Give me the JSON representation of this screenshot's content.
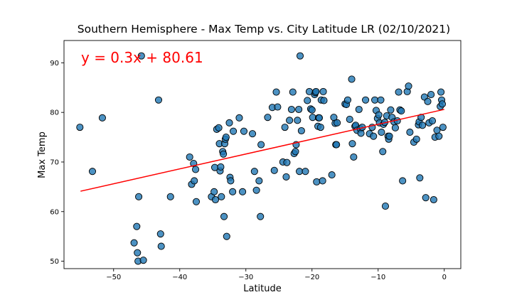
{
  "chart_data": {
    "type": "scatter",
    "title": "Southern Hemisphere - Max Temp vs. City Latitude LR (02/10/2021)",
    "xlabel": "Latitude",
    "ylabel": "Max Temp",
    "xlim": [
      -57.5,
      2.5
    ],
    "ylim": [
      48.5,
      94.5
    ],
    "xticks": [
      -50,
      -40,
      -30,
      -20,
      -10,
      0
    ],
    "yticks": [
      50,
      60,
      70,
      80,
      90
    ],
    "grid": false,
    "legend": "none",
    "point_color": "#1f77b4",
    "point_edge_color": "#000000",
    "regression": {
      "equation": "y = 0.3x + 80.61",
      "slope": 0.3,
      "intercept": 80.61,
      "x_range": [
        -55,
        0
      ],
      "color": "#ff0000"
    },
    "points": [
      [
        -55.1,
        77.0
      ],
      [
        -53.2,
        68.1
      ],
      [
        -51.7,
        78.9
      ],
      [
        -46.2,
        63.0
      ],
      [
        -45.8,
        91.4
      ],
      [
        -43.2,
        82.5
      ],
      [
        -46.9,
        53.7
      ],
      [
        -46.5,
        57.0
      ],
      [
        -46.4,
        51.7
      ],
      [
        -46.3,
        50.0
      ],
      [
        -45.5,
        50.2
      ],
      [
        -42.9,
        55.5
      ],
      [
        -42.8,
        53.0
      ],
      [
        -41.4,
        63.0
      ],
      [
        -38.5,
        71.0
      ],
      [
        -38.2,
        65.5
      ],
      [
        -37.9,
        69.7
      ],
      [
        -37.8,
        66.2
      ],
      [
        -37.6,
        68.5
      ],
      [
        -37.5,
        62.0
      ],
      [
        -35.2,
        63.0
      ],
      [
        -34.8,
        64.0
      ],
      [
        -34.7,
        68.9
      ],
      [
        -34.6,
        62.4
      ],
      [
        -34.4,
        76.6
      ],
      [
        -34.1,
        76.9
      ],
      [
        -34.0,
        73.7
      ],
      [
        -33.9,
        68.2
      ],
      [
        -33.8,
        69.0
      ],
      [
        -33.7,
        63.0
      ],
      [
        -33.5,
        72.1
      ],
      [
        -33.4,
        71.6
      ],
      [
        -33.3,
        59.0
      ],
      [
        -33.2,
        73.7
      ],
      [
        -33.1,
        74.6
      ],
      [
        -33.0,
        75.0
      ],
      [
        -32.9,
        55.0
      ],
      [
        -32.5,
        77.9
      ],
      [
        -32.4,
        66.9
      ],
      [
        -32.3,
        66.2
      ],
      [
        -32.0,
        64.0
      ],
      [
        -31.9,
        76.2
      ],
      [
        -31.0,
        78.9
      ],
      [
        -30.5,
        64.0
      ],
      [
        -30.3,
        76.2
      ],
      [
        -29.0,
        75.7
      ],
      [
        -28.7,
        68.1
      ],
      [
        -28.4,
        64.3
      ],
      [
        -28.0,
        66.2
      ],
      [
        -27.8,
        59.0
      ],
      [
        -27.7,
        73.5
      ],
      [
        -26.7,
        79.0
      ],
      [
        -26.0,
        81.0
      ],
      [
        -25.7,
        68.3
      ],
      [
        -25.4,
        84.1
      ],
      [
        -25.2,
        81.1
      ],
      [
        -24.4,
        70.0
      ],
      [
        -24.1,
        77.0
      ],
      [
        -23.9,
        67.0
      ],
      [
        -23.8,
        69.9
      ],
      [
        -23.4,
        78.4
      ],
      [
        -23.1,
        80.6
      ],
      [
        -22.9,
        84.1
      ],
      [
        -22.7,
        71.7
      ],
      [
        -22.5,
        72.1
      ],
      [
        -22.4,
        73.5
      ],
      [
        -22.2,
        78.4
      ],
      [
        -22.0,
        80.6
      ],
      [
        -21.9,
        68.1
      ],
      [
        -21.8,
        91.4
      ],
      [
        -21.6,
        76.3
      ],
      [
        -21.0,
        68.1
      ],
      [
        -20.7,
        82.4
      ],
      [
        -20.4,
        84.2
      ],
      [
        -20.2,
        80.7
      ],
      [
        -20.0,
        80.5
      ],
      [
        -19.9,
        79.0
      ],
      [
        -19.6,
        83.6
      ],
      [
        -19.5,
        84.0
      ],
      [
        -19.4,
        84.2
      ],
      [
        -19.3,
        66.0
      ],
      [
        -19.1,
        77.2
      ],
      [
        -19.0,
        78.9
      ],
      [
        -18.9,
        78.9
      ],
      [
        -18.7,
        77.0
      ],
      [
        -18.6,
        82.5
      ],
      [
        -18.4,
        66.2
      ],
      [
        -18.3,
        84.2
      ],
      [
        -18.2,
        82.4
      ],
      [
        -17.0,
        67.4
      ],
      [
        -16.7,
        79.0
      ],
      [
        -16.5,
        77.8
      ],
      [
        -16.4,
        73.5
      ],
      [
        -16.3,
        73.5
      ],
      [
        -16.2,
        77.9
      ],
      [
        -15.0,
        81.7
      ],
      [
        -14.8,
        81.6
      ],
      [
        -14.6,
        82.5
      ],
      [
        -14.3,
        78.6
      ],
      [
        -14.0,
        86.7
      ],
      [
        -13.9,
        73.7
      ],
      [
        -13.7,
        71.0
      ],
      [
        -13.5,
        77.2
      ],
      [
        -13.4,
        77.4
      ],
      [
        -13.2,
        76.4
      ],
      [
        -12.9,
        80.6
      ],
      [
        -12.7,
        76.7
      ],
      [
        -12.6,
        75.8
      ],
      [
        -12.4,
        77.0
      ],
      [
        -11.9,
        82.5
      ],
      [
        -11.3,
        75.7
      ],
      [
        -10.9,
        77.0
      ],
      [
        -10.7,
        75.2
      ],
      [
        -10.5,
        82.5
      ],
      [
        -10.3,
        80.4
      ],
      [
        -10.1,
        78.8
      ],
      [
        -9.9,
        79.5
      ],
      [
        -9.8,
        77.9
      ],
      [
        -9.6,
        82.5
      ],
      [
        -9.5,
        76.0
      ],
      [
        -9.3,
        72.1
      ],
      [
        -9.2,
        77.6
      ],
      [
        -9.0,
        78.0
      ],
      [
        -8.9,
        61.1
      ],
      [
        -8.7,
        79.3
      ],
      [
        -8.5,
        75.2
      ],
      [
        -8.4,
        74.6
      ],
      [
        -8.3,
        75.2
      ],
      [
        -8.1,
        80.5
      ],
      [
        -7.9,
        79.0
      ],
      [
        -7.6,
        78.1
      ],
      [
        -7.4,
        76.9
      ],
      [
        -7.1,
        78.3
      ],
      [
        -6.9,
        84.1
      ],
      [
        -6.7,
        80.5
      ],
      [
        -6.5,
        80.3
      ],
      [
        -6.3,
        66.2
      ],
      [
        -5.6,
        84.2
      ],
      [
        -5.4,
        85.3
      ],
      [
        -5.2,
        76.0
      ],
      [
        -4.6,
        74.0
      ],
      [
        -4.2,
        74.6
      ],
      [
        -3.9,
        77.5
      ],
      [
        -3.8,
        78.1
      ],
      [
        -3.7,
        66.8
      ],
      [
        -3.5,
        79.0
      ],
      [
        -3.3,
        77.4
      ],
      [
        -3.0,
        83.1
      ],
      [
        -2.8,
        62.8
      ],
      [
        -2.5,
        82.2
      ],
      [
        -2.3,
        77.9
      ],
      [
        -2.0,
        83.6
      ],
      [
        -1.8,
        78.3
      ],
      [
        -1.6,
        62.4
      ],
      [
        -1.4,
        75.0
      ],
      [
        -1.1,
        76.4
      ],
      [
        -0.8,
        75.2
      ],
      [
        -0.6,
        81.2
      ],
      [
        -0.5,
        84.1
      ],
      [
        -0.4,
        82.5
      ],
      [
        -0.3,
        81.7
      ],
      [
        -0.2,
        77.0
      ]
    ]
  }
}
